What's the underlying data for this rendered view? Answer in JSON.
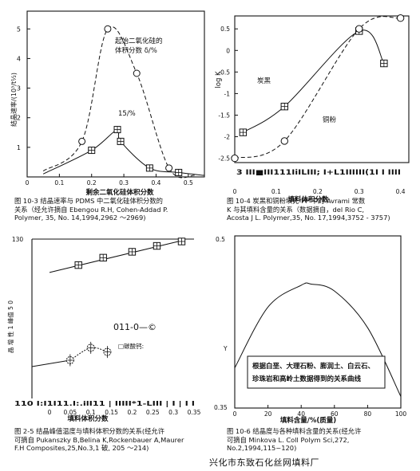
{
  "chart_data": [
    {
      "type": "line",
      "ylabel": "结晶速率/(10³/t½)",
      "xlabel": "剩余二氧化硅体积分数",
      "yticks": [
        1,
        2,
        3,
        4,
        5
      ],
      "xticks": [
        0,
        0.1,
        0.2,
        0.3,
        0.4,
        0.5
      ],
      "xlim": [
        0,
        0.55
      ],
      "ylim": [
        0,
        5.6
      ],
      "legend_title": "起始二氧化硅的\n体积分数 δ/%",
      "series": [
        {
          "name": "",
          "marker": "circle",
          "style": "dashed",
          "x": [
            0.05,
            0.17,
            0.25,
            0.34,
            0.44,
            0.52
          ],
          "y": [
            0.2,
            1.2,
            5.0,
            3.5,
            0.3,
            0.05
          ]
        },
        {
          "name": "15/%",
          "marker": "square-cross",
          "style": "solid",
          "x": [
            0.05,
            0.2,
            0.28,
            0.29,
            0.38,
            0.47,
            0.55
          ],
          "y": [
            0.1,
            0.9,
            1.6,
            1.2,
            0.3,
            0.15,
            0.05
          ]
        }
      ],
      "caption": [
        "图 10-3 结晶速率与 PDMS 中二氧化硅体积分数的",
        "关系（经允许摘自  Ebengou R.H, Cohen-Addad P.",
        "Polymer, 35, No. 14,1994,2962 ～2969)"
      ]
    },
    {
      "type": "line",
      "ylabel": "log K",
      "xlabel": "填料体积分数",
      "yticks": [
        0.5,
        0,
        -0.5,
        -1,
        -1.5,
        -2,
        -2.5
      ],
      "xticks": [
        0,
        0.1,
        0.2,
        0.3,
        0.4
      ],
      "xlim": [
        0,
        0.42
      ],
      "ylim": [
        -2.6,
        0.8
      ],
      "annotations": [
        "炭黑",
        "铜粉"
      ],
      "series": [
        {
          "name": "炭黑",
          "marker": "square-cross",
          "style": "solid",
          "x": [
            0.02,
            0.12,
            0.3,
            0.36
          ],
          "y": [
            -1.9,
            -1.3,
            0.45,
            -0.3
          ]
        },
        {
          "name": "铜粉",
          "marker": "circle",
          "style": "dashed",
          "x": [
            0.0,
            0.12,
            0.3,
            0.4
          ],
          "y": [
            -2.5,
            -2.1,
            0.5,
            0.75
          ]
        }
      ],
      "axis_text": "3 III■III111IiILIII; I+L1IIIIII(1I I IIII",
      "caption": [
        "图 10-4 炭黑和铜粉填充 PP 中的 Avrami 常数",
        "K 与其填料含量的关系（数据摘自，del Rio C,",
        "Acosta J L. Polymer,35, No. 17,1994,3752 - 3757)"
      ]
    },
    {
      "type": "scatter",
      "ylabel": "晶 增 性 1 峰值 5 0",
      "xlabel": "填料体积分数",
      "top_value": "130",
      "xticks": [
        "0",
        "0.05",
        "0.1",
        "0.15",
        "0.2",
        "0.25",
        "0.3",
        "0.35"
      ],
      "xlim": [
        0,
        0.35
      ],
      "annotations": [
        "011-0—©",
        "□碳酸钙:"
      ],
      "series": [
        {
          "name": "",
          "marker": "square-cross",
          "style": "solid",
          "x": [
            0.07,
            0.13,
            0.2,
            0.26,
            0.32
          ],
          "y": [
            0.2,
            0.45,
            0.65,
            0.85,
            1.0
          ]
        },
        {
          "name": "",
          "marker": "circle-cross",
          "style": "solid",
          "x": [
            0.05,
            0.1,
            0.14
          ],
          "y": [
            0.0,
            0.6,
            0.4
          ]
        }
      ],
      "axis_text": "110 I:I1I11.I:.ilI11  |  IIIII*1-LIII  |  I  |  I I",
      "caption": [
        "图 2-5 结晶峰值温度与填料体积分数的关系(经允许",
        "可摘自  Pukanszky B,Belina K,Rockenbauer A,Maurer",
        "F.H Composites,25,No.3,1 破, 205 ～214)"
      ]
    },
    {
      "type": "line",
      "xlabel": "填料含量/%(质量)",
      "ytick_labels": [
        "0.5",
        "Y",
        "0.35"
      ],
      "xticks": [
        0,
        20,
        40,
        60,
        80,
        100
      ],
      "xlim": [
        0,
        100
      ],
      "ylim": [
        0.35,
        0.5
      ],
      "note": "根据白垩、大理石粉、膨润土、白云石、\n珍珠岩和高岭土数据得到的关系曲线",
      "series": [
        {
          "name": "",
          "style": "solid",
          "x": [
            0,
            20,
            40,
            46,
            60,
            80,
            100
          ],
          "y": [
            0.385,
            0.438,
            0.457,
            0.458,
            0.452,
            0.42,
            0.36
          ]
        }
      ],
      "caption": [
        "图 10-6 结晶度与各种填料含量的关系(经允许",
        "可摘自  Minkova L. Coll Polym Sci,272,",
        "No.2,1994,115~120)"
      ]
    }
  ],
  "footer": "兴化市东致石化丝网填料厂"
}
